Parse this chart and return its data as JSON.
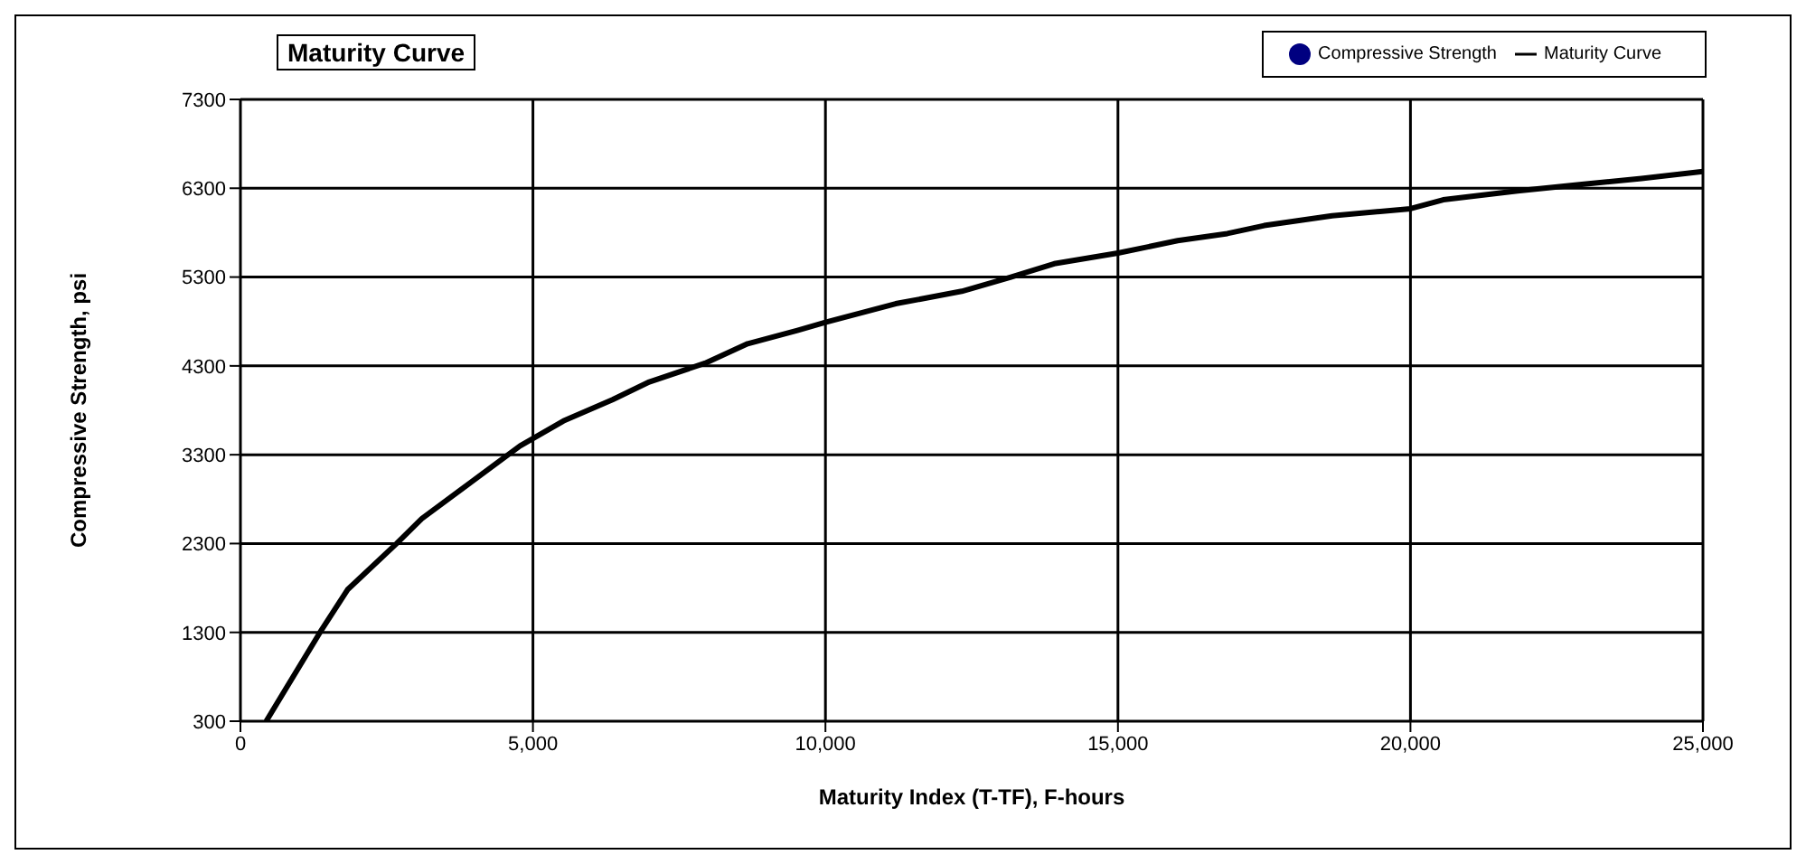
{
  "chart_data": {
    "type": "line",
    "title": "Maturity Curve",
    "xlabel": "Maturity Index (T-TF), F-hours",
    "ylabel": "Compressive Strength, psi",
    "xlim": [
      0,
      25000
    ],
    "xticks": [
      0,
      {
        "value": 5000,
        "label": "5,000"
      },
      {
        "value": 10000,
        "label": "10,000"
      },
      {
        "value": 15000,
        "label": "15,000"
      },
      {
        "value": 20000,
        "label": "20,000"
      },
      {
        "value": 25000,
        "label": "25,000"
      }
    ],
    "ylim": [
      300,
      7300
    ],
    "yticks": [
      300,
      1300,
      2300,
      3300,
      4300,
      5300,
      6300,
      7300
    ],
    "grid": true,
    "legend": "top right",
    "series": [
      {
        "name": "Compressive Strength",
        "type": "scatter",
        "color": "#000080",
        "marker": "circle"
      },
      {
        "name": "Maturity Curve",
        "color": "#000000",
        "marker": "none",
        "line_style": "solid",
        "x": [
          440,
          1360,
          1830,
          2670,
          3100,
          3940,
          4780,
          5520,
          6360,
          6990,
          7940,
          8670,
          9520,
          10000,
          11200,
          12330,
          13170,
          13910,
          15000,
          16020,
          16870,
          17500,
          18660,
          20000,
          20560,
          21830,
          22890,
          23950,
          25000
        ],
        "values": [
          300,
          1300,
          1780,
          2300,
          2580,
          2990,
          3400,
          3680,
          3920,
          4120,
          4330,
          4550,
          4700,
          4790,
          5000,
          5140,
          5300,
          5450,
          5570,
          5710,
          5790,
          5880,
          5990,
          6070,
          6170,
          6270,
          6340,
          6410,
          6490
        ]
      }
    ]
  }
}
